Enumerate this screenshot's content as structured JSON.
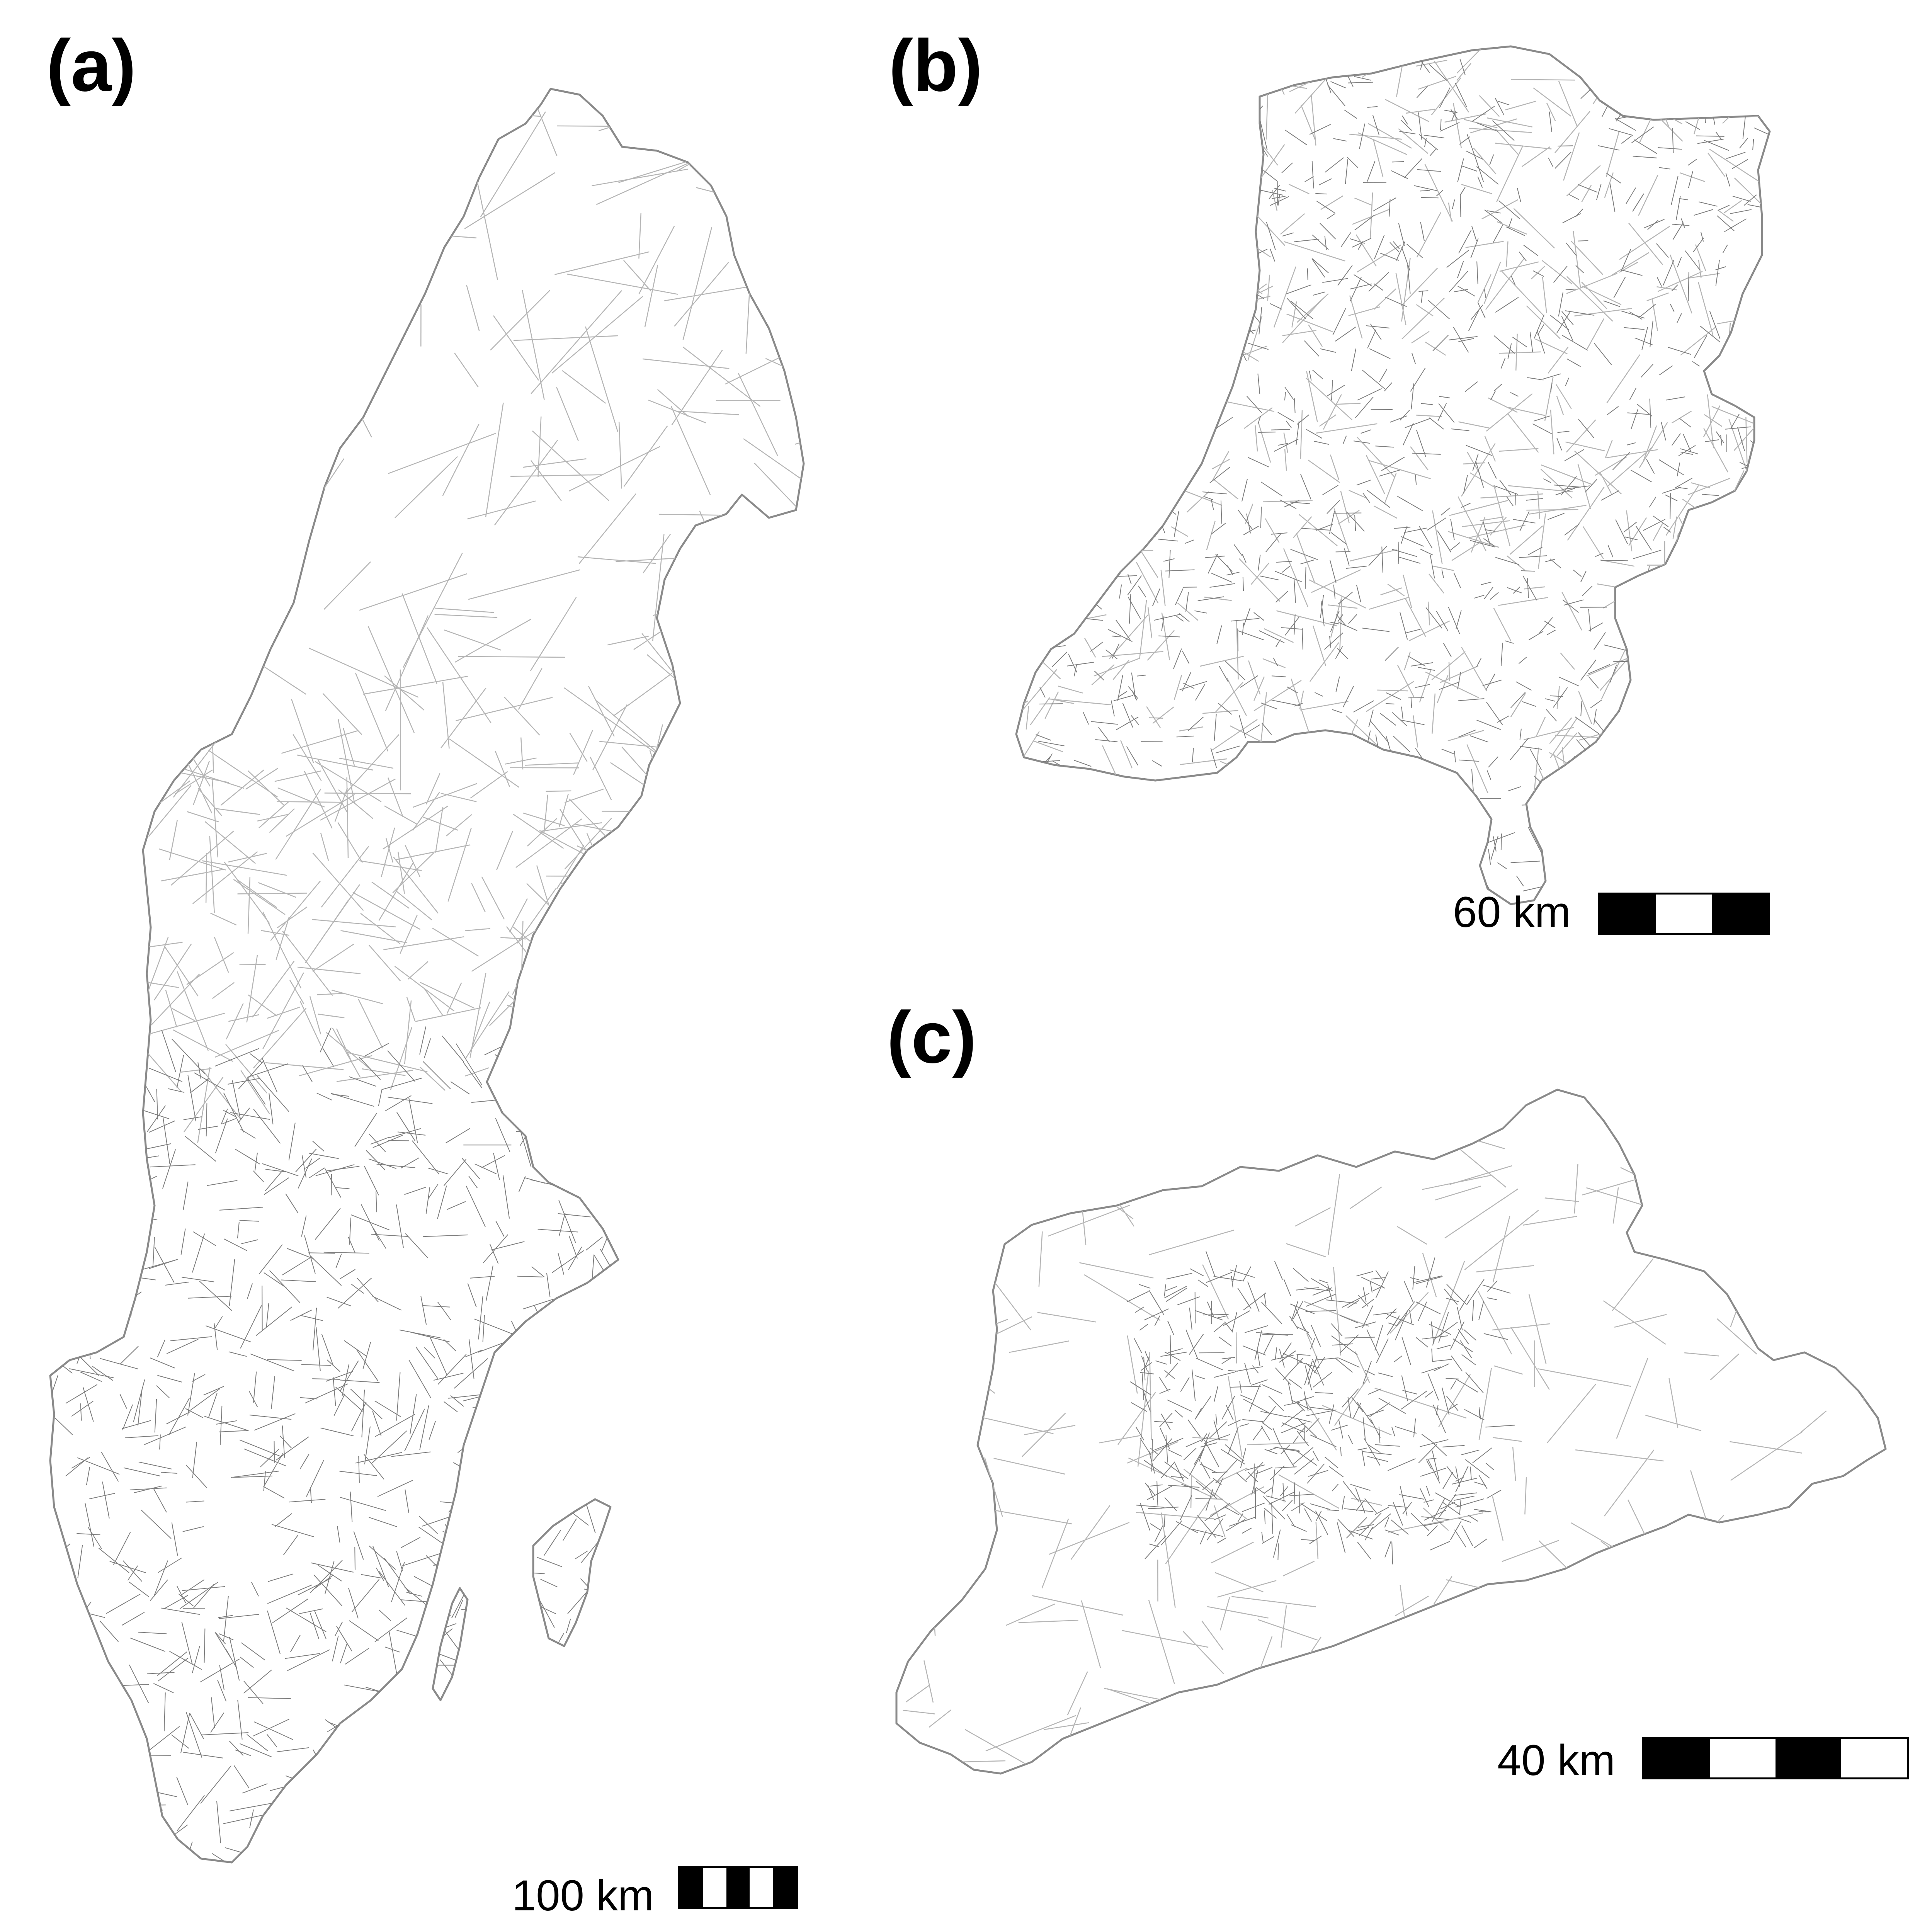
{
  "panels": [
    {
      "id": "a",
      "label": "(a)",
      "scale_label": "100 km",
      "scale_segments": [
        "black",
        "white",
        "black",
        "white",
        "black"
      ]
    },
    {
      "id": "b",
      "label": "(b)",
      "scale_label": "60 km",
      "scale_segments": [
        "black",
        "white",
        "black"
      ]
    },
    {
      "id": "c",
      "label": "(c)",
      "scale_label": "40 km",
      "scale_segments": [
        "black",
        "white",
        "black",
        "white"
      ]
    }
  ],
  "colors": {
    "boundary": "#9a9a9a",
    "dense": "#7d7d7d",
    "scale": "#000000",
    "background": "#ffffff"
  }
}
